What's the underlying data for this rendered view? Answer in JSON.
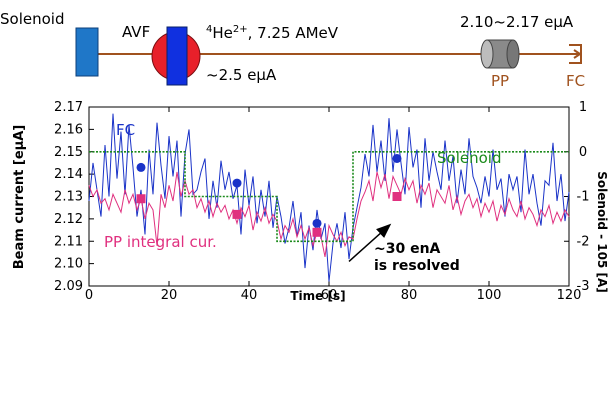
{
  "beamline": {
    "solenoid_label": "Solenoid",
    "avf_label": "AVF",
    "ion_super": "4",
    "ion_label": "He",
    "ion_charge": "2+",
    "energy_label": ", 7.25 AMeV",
    "avf_current": "~2.5 eμA",
    "downstream_current": "2.10~2.17 eμA",
    "pp_label": "PP",
    "fc_label": "FC",
    "colors": {
      "line": "#a0521e",
      "solenoid": "#1f77c8",
      "avf_red": "#e8202a",
      "avf_blue": "#1030e0",
      "pp_body": "#888888",
      "brown_text": "#a0521e"
    }
  },
  "chart_data": {
    "type": "line",
    "xlabel": "Time [s]",
    "ylabel": "Beam current [eμA]",
    "y2label": "Solenoid - 105 [A]",
    "xlim": [
      0,
      120
    ],
    "ylim": [
      2.09,
      2.17
    ],
    "y2lim": [
      -3,
      1
    ],
    "x_ticks": [
      0,
      20,
      40,
      60,
      80,
      100,
      120
    ],
    "y_ticks": [
      2.09,
      2.1,
      2.11,
      2.12,
      2.13,
      2.14,
      2.15,
      2.16,
      2.17
    ],
    "y_tick_labels": [
      "2.09",
      "2.10",
      "2.11",
      "2.12",
      "2.13",
      "2.14",
      "2.15",
      "2.16",
      "2.17"
    ],
    "y2_ticks": [
      -3,
      -2,
      -1,
      0,
      1
    ],
    "y2_tick_labels": [
      "-3",
      "-2",
      "-1",
      "0",
      "1"
    ],
    "series": [
      {
        "name": "FC",
        "color": "#1a33c8",
        "axis": "left",
        "x": [
          0,
          1,
          2,
          3,
          4,
          5,
          6,
          7,
          8,
          9,
          10,
          11,
          12,
          13,
          14,
          15,
          16,
          17,
          18,
          19,
          20,
          21,
          22,
          23,
          24,
          25,
          26,
          27,
          28,
          29,
          30,
          31,
          32,
          33,
          34,
          35,
          36,
          37,
          38,
          39,
          40,
          41,
          42,
          43,
          44,
          45,
          46,
          47,
          48,
          49,
          50,
          51,
          52,
          53,
          54,
          55,
          56,
          57,
          58,
          59,
          60,
          61,
          62,
          63,
          64,
          65,
          66,
          67,
          68,
          69,
          70,
          71,
          72,
          73,
          74,
          75,
          76,
          77,
          78,
          79,
          80,
          81,
          82,
          83,
          84,
          85,
          86,
          87,
          88,
          89,
          90,
          91,
          92,
          93,
          94,
          95,
          96,
          97,
          98,
          99,
          100,
          101,
          102,
          103,
          104,
          105,
          106,
          107,
          108,
          109,
          110,
          111,
          112,
          113,
          114,
          115,
          116,
          117,
          118,
          119,
          120
        ],
        "y": [
          2.128,
          2.145,
          2.133,
          2.121,
          2.153,
          2.13,
          2.167,
          2.138,
          2.159,
          2.131,
          2.162,
          2.143,
          2.121,
          2.133,
          2.113,
          2.151,
          2.131,
          2.163,
          2.144,
          2.129,
          2.157,
          2.139,
          2.155,
          2.121,
          2.149,
          2.16,
          2.131,
          2.133,
          2.141,
          2.147,
          2.12,
          2.137,
          2.125,
          2.146,
          2.133,
          2.141,
          2.129,
          2.135,
          2.113,
          2.142,
          2.126,
          2.139,
          2.118,
          2.133,
          2.121,
          2.137,
          2.116,
          2.13,
          2.121,
          2.109,
          2.116,
          2.128,
          2.112,
          2.123,
          2.098,
          2.117,
          2.106,
          2.124,
          2.111,
          2.118,
          2.092,
          2.109,
          2.118,
          2.107,
          2.123,
          2.102,
          2.116,
          2.125,
          2.134,
          2.149,
          2.139,
          2.162,
          2.141,
          2.155,
          2.137,
          2.165,
          2.141,
          2.16,
          2.145,
          2.131,
          2.161,
          2.143,
          2.151,
          2.125,
          2.156,
          2.137,
          2.15,
          2.141,
          2.133,
          2.155,
          2.137,
          2.148,
          2.127,
          2.142,
          2.131,
          2.156,
          2.139,
          2.134,
          2.127,
          2.139,
          2.13,
          2.151,
          2.133,
          2.138,
          2.121,
          2.14,
          2.133,
          2.139,
          2.123,
          2.151,
          2.131,
          2.14,
          2.127,
          2.117,
          2.137,
          2.135,
          2.154,
          2.128,
          2.14,
          2.119,
          2.132
        ]
      },
      {
        "name": "PP integral cur.",
        "color": "#e0307f",
        "axis": "left",
        "x": [
          0,
          1,
          2,
          3,
          4,
          5,
          6,
          7,
          8,
          9,
          10,
          11,
          12,
          13,
          14,
          15,
          16,
          17,
          18,
          19,
          20,
          21,
          22,
          23,
          24,
          25,
          26,
          27,
          28,
          29,
          30,
          31,
          32,
          33,
          34,
          35,
          36,
          37,
          38,
          39,
          40,
          41,
          42,
          43,
          44,
          45,
          46,
          47,
          48,
          49,
          50,
          51,
          52,
          53,
          54,
          55,
          56,
          57,
          58,
          59,
          60,
          61,
          62,
          63,
          64,
          65,
          66,
          67,
          68,
          69,
          70,
          71,
          72,
          73,
          74,
          75,
          76,
          77,
          78,
          79,
          80,
          81,
          82,
          83,
          84,
          85,
          86,
          87,
          88,
          89,
          90,
          91,
          92,
          93,
          94,
          95,
          96,
          97,
          98,
          99,
          100,
          101,
          102,
          103,
          104,
          105,
          106,
          107,
          108,
          109,
          110,
          111,
          112,
          113,
          114,
          115,
          116,
          117,
          118,
          119,
          120
        ],
        "y": [
          2.135,
          2.13,
          2.133,
          2.127,
          2.129,
          2.124,
          2.131,
          2.127,
          2.123,
          2.133,
          2.127,
          2.131,
          2.124,
          2.129,
          2.12,
          2.127,
          2.124,
          2.108,
          2.131,
          2.125,
          2.135,
          2.128,
          2.141,
          2.13,
          2.137,
          2.131,
          2.133,
          2.125,
          2.129,
          2.123,
          2.128,
          2.121,
          2.127,
          2.123,
          2.126,
          2.12,
          2.124,
          2.118,
          2.125,
          2.121,
          2.126,
          2.115,
          2.123,
          2.119,
          2.125,
          2.118,
          2.122,
          2.119,
          2.111,
          2.117,
          2.114,
          2.12,
          2.112,
          2.117,
          2.111,
          2.116,
          2.108,
          2.114,
          2.112,
          2.103,
          2.117,
          2.113,
          2.11,
          2.114,
          2.108,
          2.112,
          2.111,
          2.12,
          2.128,
          2.132,
          2.137,
          2.128,
          2.141,
          2.134,
          2.14,
          2.129,
          2.139,
          2.135,
          2.131,
          2.138,
          2.133,
          2.137,
          2.127,
          2.135,
          2.131,
          2.136,
          2.125,
          2.133,
          2.13,
          2.127,
          2.135,
          2.124,
          2.13,
          2.122,
          2.128,
          2.131,
          2.125,
          2.129,
          2.121,
          2.127,
          2.123,
          2.128,
          2.119,
          2.126,
          2.122,
          2.129,
          2.124,
          2.121,
          2.128,
          2.12,
          2.125,
          2.122,
          2.117,
          2.124,
          2.121,
          2.126,
          2.118,
          2.123,
          2.119,
          2.124,
          2.121
        ]
      },
      {
        "name": "Solenoid",
        "color": "#1b8a1b",
        "axis": "right",
        "style": "dotted-step",
        "x": [
          0,
          24,
          24,
          47,
          47,
          66,
          66,
          120
        ],
        "y": [
          0,
          0,
          -1,
          -1,
          -2,
          -2,
          0,
          0
        ]
      },
      {
        "name": "FC mean",
        "color": "#1a33c8",
        "marker": "circle",
        "axis": "left",
        "x": [
          13,
          37,
          57,
          77
        ],
        "y": [
          2.143,
          2.136,
          2.118,
          2.147
        ]
      },
      {
        "name": "PP mean",
        "color": "#e0307f",
        "marker": "square",
        "axis": "left",
        "x": [
          13,
          37,
          57,
          77
        ],
        "y": [
          2.129,
          2.122,
          2.114,
          2.13
        ]
      }
    ],
    "labels": {
      "fc": "FC",
      "pp": "PP integral cur.",
      "solenoid": "Solenoid"
    },
    "annotation": {
      "line1": "~30 enA",
      "line2": "is resolved",
      "arrow_from": [
        65,
        2.101
      ],
      "arrow_to": [
        75,
        2.117
      ]
    },
    "grid": false,
    "legend": "none"
  }
}
